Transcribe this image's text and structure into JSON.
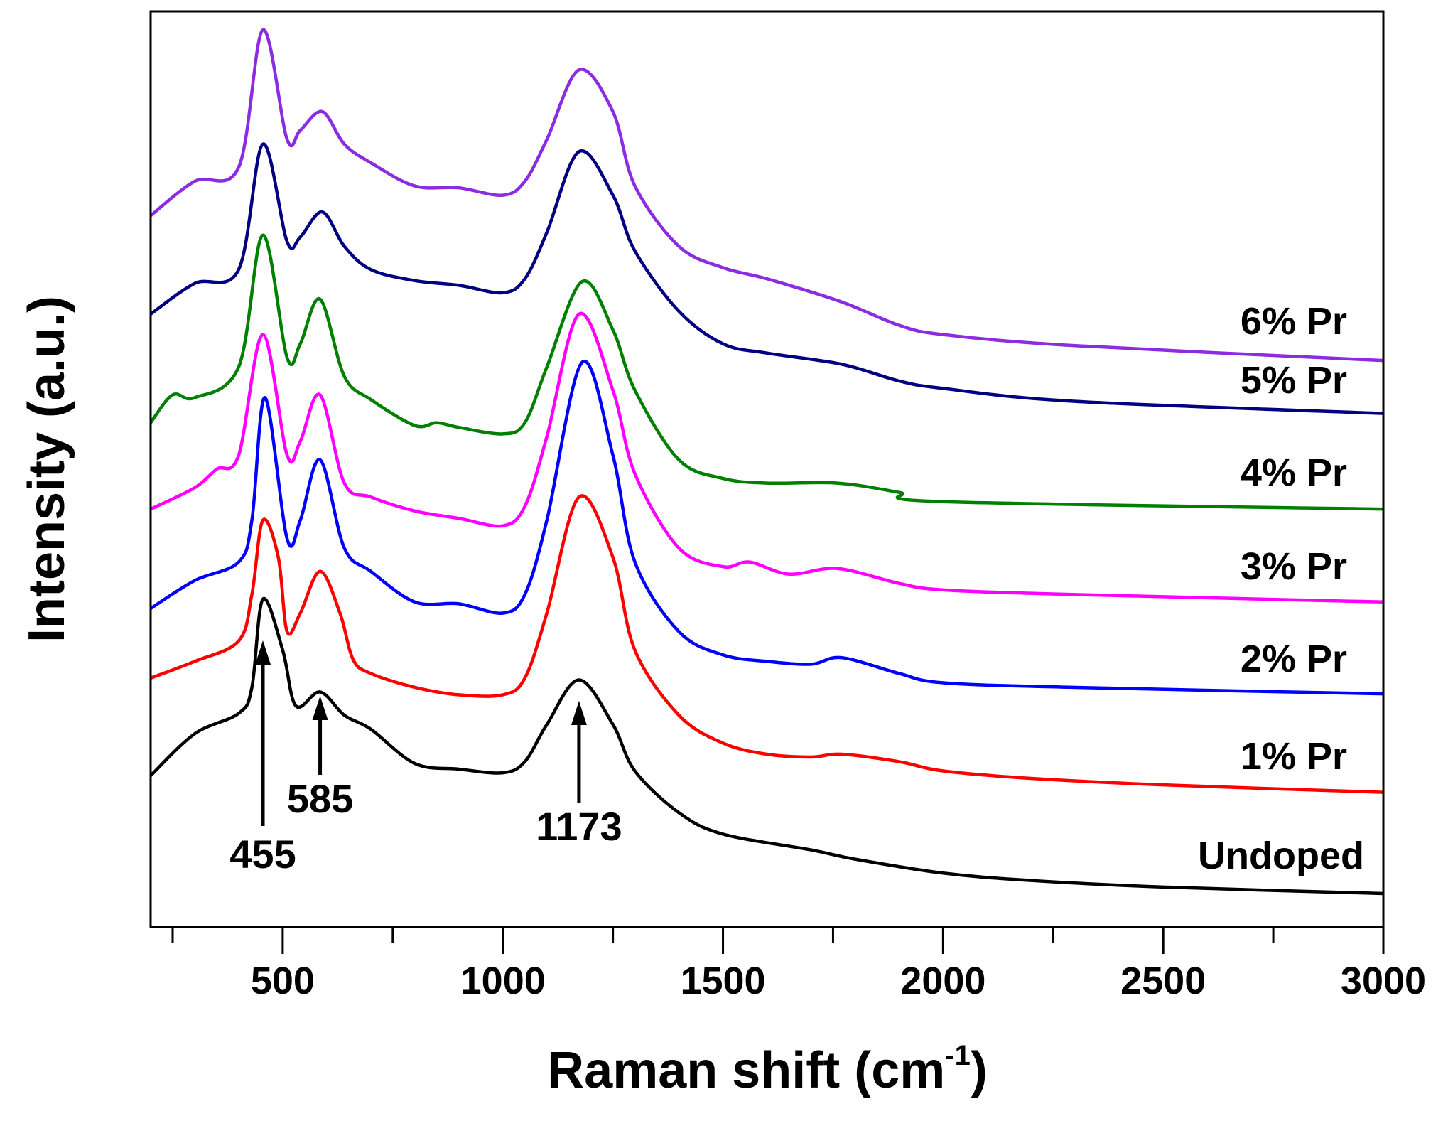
{
  "chart_data": {
    "type": "line",
    "title": "",
    "xlabel": "Raman shift (cm",
    "xlabel_sup": "-1",
    "xlabel_end": ")",
    "ylabel": "Intensity (a.u.)",
    "xlim": [
      200,
      3000
    ],
    "ylim": [
      0.2,
      98.8
    ],
    "xticks": [
      500,
      1000,
      1500,
      2000,
      2500,
      3000
    ],
    "xtick_labels": [
      "500",
      "1000",
      "1500",
      "2000",
      "2500",
      "3000"
    ],
    "minor_xticks": [
      250,
      750,
      1250,
      1750,
      2250,
      2750
    ],
    "y_ticks_shown": false,
    "grid": false,
    "legend": "inline labels at right of each curve",
    "series": [
      {
        "name": "Undoped",
        "color": "#000000",
        "x": [
          200,
          300,
          400,
          430,
          455,
          500,
          530,
          585,
          640,
          700,
          800,
          900,
          1000,
          1050,
          1100,
          1173,
          1250,
          1300,
          1400,
          1500,
          1700,
          1800,
          2000,
          2200,
          2500,
          3000
        ],
        "y": [
          16.5,
          21,
          23.2,
          26,
          35.5,
          30,
          24,
          25.5,
          23,
          21.5,
          17.8,
          17.2,
          16.8,
          18,
          22,
          26.8,
          22,
          17,
          12.5,
          10.2,
          8.5,
          7.5,
          6,
          5.2,
          4.5,
          3.8
        ]
      },
      {
        "name": "1% Pr",
        "color": "#ff0000",
        "x": [
          200,
          300,
          400,
          430,
          455,
          490,
          510,
          540,
          585,
          630,
          660,
          700,
          800,
          900,
          1000,
          1050,
          1100,
          1173,
          1250,
          1300,
          1400,
          1500,
          1600,
          1700,
          1770,
          1900,
          2000,
          2200,
          2500,
          3000
        ],
        "y": [
          27,
          28.8,
          31,
          36,
          44,
          40,
          32,
          34,
          38.5,
          34,
          29,
          27.5,
          26,
          25.2,
          25.2,
          27,
          34,
          46.5,
          40,
          30,
          23,
          20,
          18.8,
          18.5,
          18.8,
          18,
          17,
          16.2,
          15.5,
          14.7
        ]
      },
      {
        "name": "2% Pr",
        "color": "#0000ff",
        "x": [
          200,
          300,
          400,
          430,
          460,
          510,
          540,
          585,
          640,
          700,
          800,
          900,
          1000,
          1050,
          1100,
          1180,
          1250,
          1300,
          1400,
          1500,
          1600,
          1700,
          1770,
          1900,
          2000,
          2300,
          3000
        ],
        "y": [
          34.5,
          37.5,
          39.5,
          44,
          57.2,
          42,
          44,
          50.5,
          41,
          38.5,
          35.2,
          35,
          34,
          36,
          44,
          61,
          51,
          39.5,
          32,
          29.5,
          28.8,
          28.5,
          29.2,
          27.5,
          26.5,
          26,
          25.3
        ]
      },
      {
        "name": "3% Pr",
        "color": "#ff00ff",
        "x": [
          200,
          300,
          350,
          400,
          455,
          510,
          540,
          585,
          640,
          700,
          800,
          900,
          1000,
          1050,
          1100,
          1173,
          1250,
          1300,
          1400,
          1500,
          1560,
          1650,
          1760,
          1900,
          2000,
          2300,
          3000
        ],
        "y": [
          45.2,
          47.5,
          49.5,
          51,
          64,
          51,
          52.5,
          57.5,
          48,
          46.5,
          45,
          44.2,
          43.4,
          45.5,
          53,
          66.2,
          58,
          49,
          41,
          39,
          39.5,
          38.2,
          38.8,
          37.2,
          36.5,
          36,
          35.2
        ]
      },
      {
        "name": "4% Pr",
        "color": "#008000",
        "x": [
          200,
          250,
          300,
          400,
          455,
          510,
          540,
          585,
          640,
          700,
          800,
          850,
          900,
          1000,
          1050,
          1100,
          1180,
          1250,
          1300,
          1400,
          1500,
          1600,
          1760,
          1900,
          2000,
          3000
        ],
        "y": [
          54.5,
          57.5,
          57.2,
          60.5,
          74.7,
          61.5,
          63,
          67.8,
          59.5,
          57,
          54.2,
          54.5,
          54,
          53.3,
          54.5,
          60.5,
          69.7,
          64.5,
          58,
          50.5,
          48.5,
          48,
          48,
          47,
          46,
          45.2
        ]
      },
      {
        "name": "5% Pr",
        "color": "#000080",
        "x": [
          200,
          300,
          400,
          455,
          510,
          540,
          590,
          640,
          700,
          800,
          900,
          1000,
          1050,
          1100,
          1173,
          1250,
          1300,
          1400,
          1500,
          1600,
          1770,
          1900,
          2000,
          2300,
          3000
        ],
        "y": [
          66.2,
          69.5,
          71,
          84.5,
          74,
          74.5,
          77.2,
          73.5,
          71,
          69.8,
          69.3,
          68.5,
          70,
          75,
          83.7,
          79,
          73,
          66.5,
          63,
          62,
          60.8,
          59,
          58.2,
          56.8,
          55.5
        ]
      },
      {
        "name": "6% Pr",
        "color": "#8b2be2",
        "x": [
          200,
          300,
          400,
          455,
          510,
          540,
          590,
          640,
          700,
          800,
          900,
          1000,
          1050,
          1100,
          1173,
          1250,
          1300,
          1400,
          1500,
          1600,
          1770,
          1900,
          2000,
          2300,
          3000
        ],
        "y": [
          76.8,
          80.5,
          82,
          96.8,
          85,
          86,
          88,
          84.5,
          82.5,
          80,
          79.8,
          79,
          80.5,
          85,
          92.5,
          88,
          80,
          73.5,
          71.2,
          70,
          67.5,
          65,
          64,
          62.8,
          61.2
        ]
      }
    ],
    "annotations": [
      {
        "text": "455",
        "x": 455,
        "arrow": "up"
      },
      {
        "text": "585",
        "x": 585,
        "arrow": "up"
      },
      {
        "text": "1173",
        "x": 1173,
        "arrow": "up"
      }
    ]
  }
}
